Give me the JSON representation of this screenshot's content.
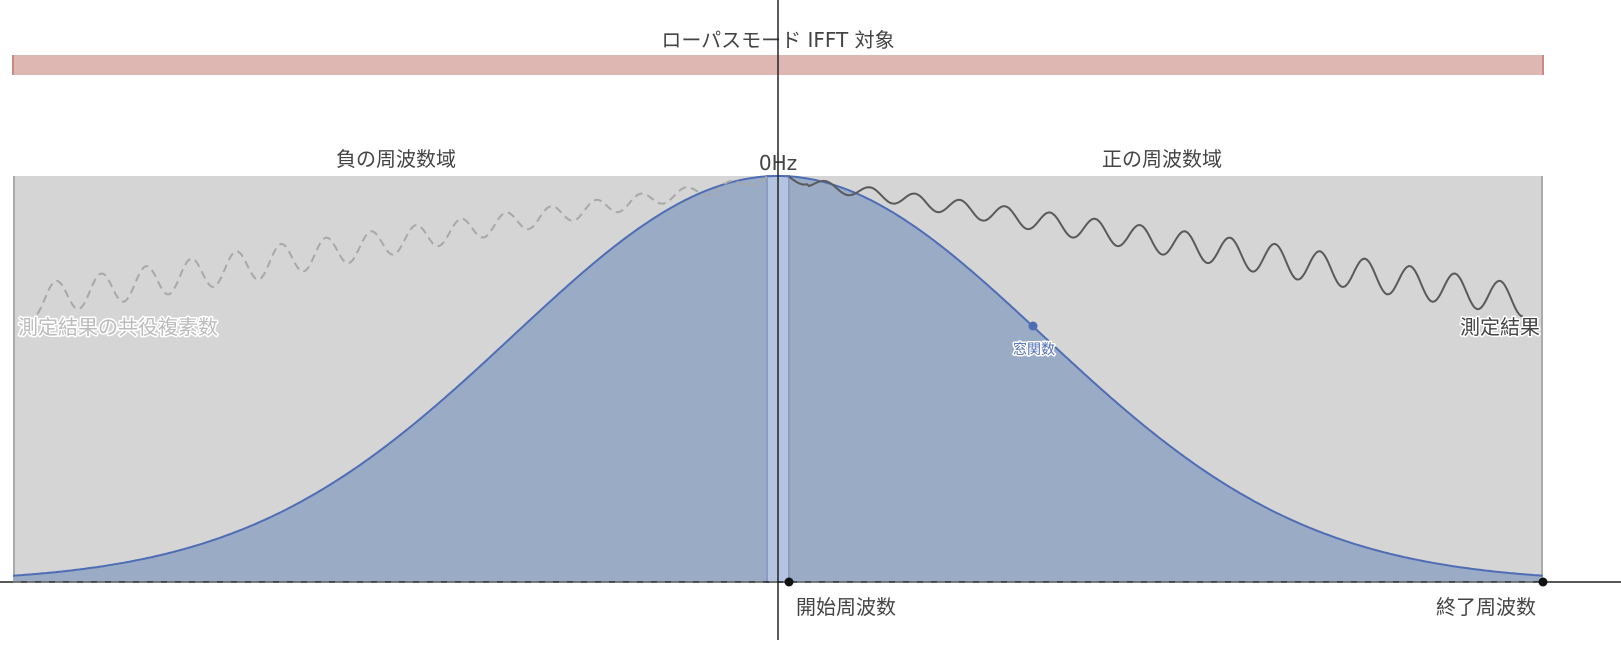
{
  "title": "ローパスモード IFFT 対象",
  "labels": {
    "negative_domain": "負の周波数域",
    "positive_domain": "正の周波数域",
    "zero_hz": "0Hz",
    "conjugate": "測定結果の共役複素数",
    "measured": "測定結果",
    "window": "窓関数",
    "start_freq": "開始周波数",
    "end_freq": "終了周波数"
  },
  "colors": {
    "ifft_bar": "#dfb7b2",
    "ifft_bar_edge": "#c98a84",
    "domain_bg": "#d5d5d5",
    "window_fill": "#9aabc6",
    "window_line": "#4e6db5",
    "center_band": "#b4c3e0",
    "measured_line": "#5a5a5a",
    "conjugate_line": "#a8a8a8"
  }
}
